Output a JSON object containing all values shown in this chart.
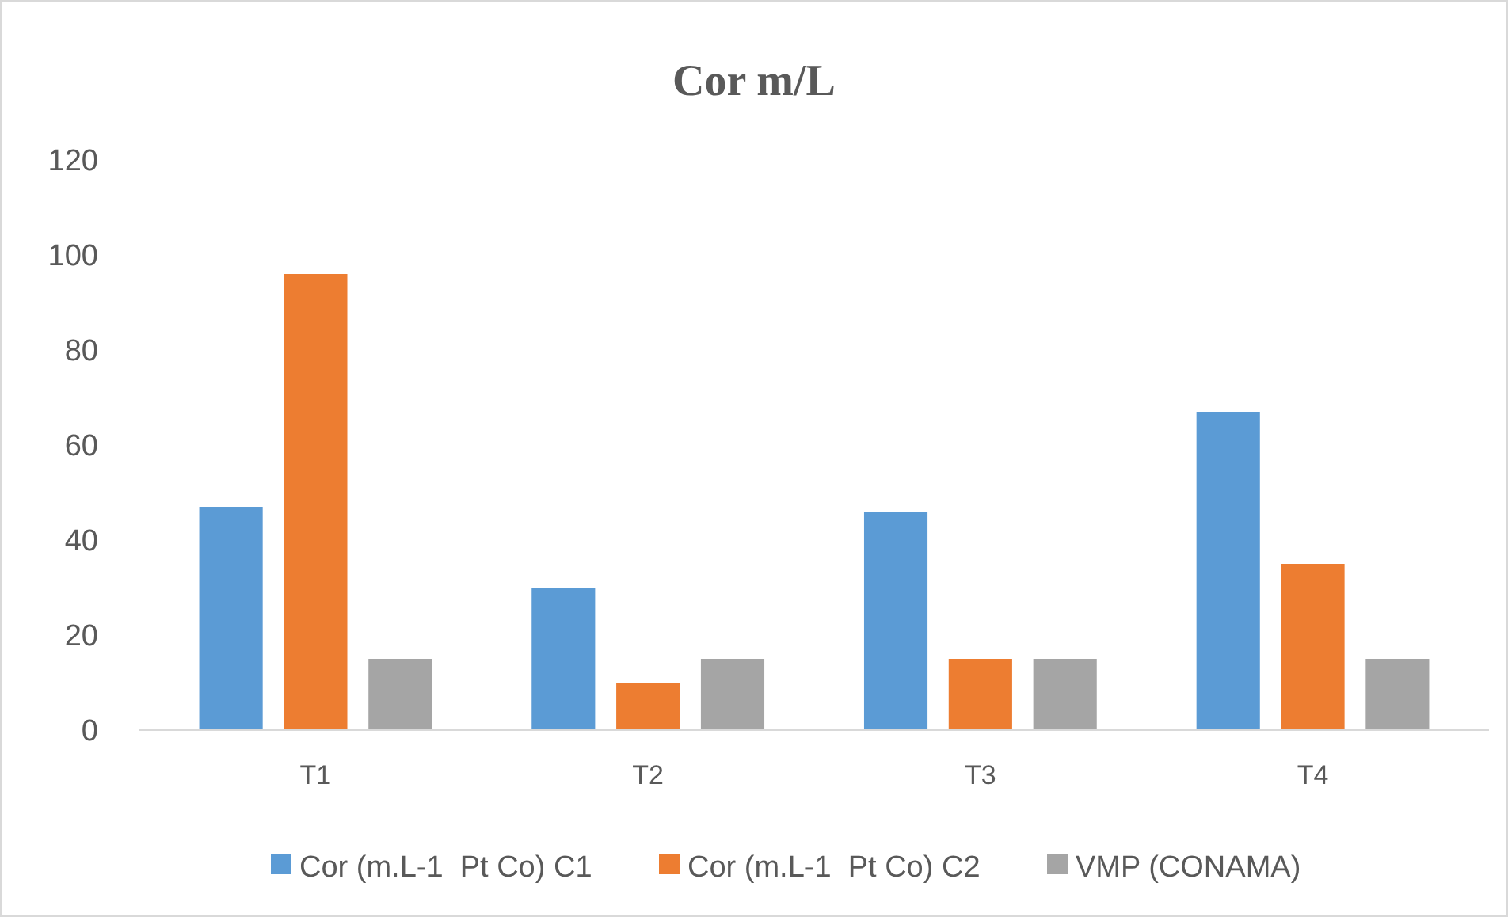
{
  "chart_data": {
    "type": "bar",
    "title": "Cor m/L",
    "categories": [
      "T1",
      "T2",
      "T3",
      "T4"
    ],
    "series": [
      {
        "name": "Cor (m.L-1  Pt Co) C1",
        "color": "#5b9bd5",
        "values": [
          47,
          30,
          46,
          67
        ]
      },
      {
        "name": "Cor (m.L-1  Pt Co) C2",
        "color": "#ed7d31",
        "values": [
          96,
          10,
          15,
          35
        ]
      },
      {
        "name": "VMP (CONAMA)",
        "color": "#a5a5a5",
        "values": [
          15,
          15,
          15,
          15
        ]
      }
    ],
    "ylim": [
      0,
      120
    ],
    "yticks": [
      0,
      20,
      40,
      60,
      80,
      100,
      120
    ],
    "grid": false,
    "legend": "bottom"
  }
}
